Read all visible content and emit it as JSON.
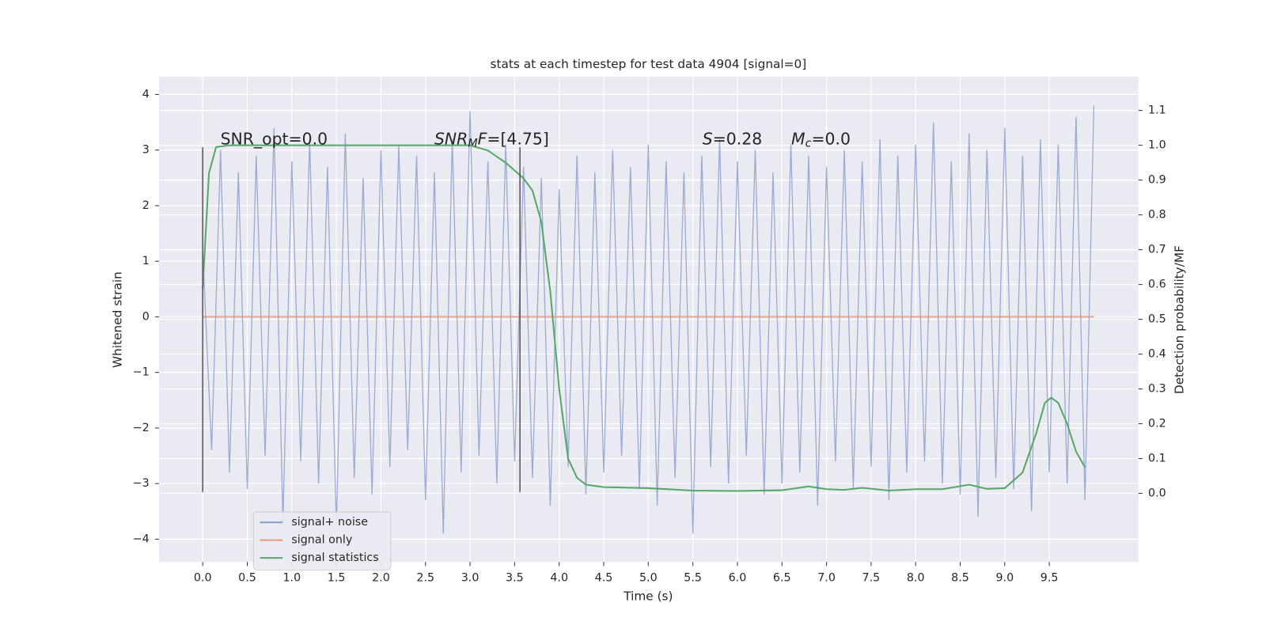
{
  "chart_data": {
    "type": "line",
    "title": "stats at each timestep for test data 4904 [signal=0]",
    "xlabel": "Time (s)",
    "ylabel": "Whitened strain",
    "y2label": "Detection probability/MF",
    "grid": true,
    "legend": "lower left",
    "xlim": [
      -0.49,
      10.5
    ],
    "ylim": [
      -4.41,
      4.32
    ],
    "y2lim": [
      -0.197,
      1.197
    ],
    "xticks": [
      {
        "value": 0,
        "label": "0.0"
      },
      {
        "value": 0.5,
        "label": "0.5"
      },
      {
        "value": 1,
        "label": "1.0"
      },
      {
        "value": 1.5,
        "label": "1.5"
      },
      {
        "value": 2,
        "label": "2.0"
      },
      {
        "value": 2.5,
        "label": "2.5"
      },
      {
        "value": 3,
        "label": "3.0"
      },
      {
        "value": 3.5,
        "label": "3.5"
      },
      {
        "value": 4,
        "label": "4.0"
      },
      {
        "value": 4.5,
        "label": "4.5"
      },
      {
        "value": 5,
        "label": "5.0"
      },
      {
        "value": 5.5,
        "label": "5.5"
      },
      {
        "value": 6,
        "label": "6.0"
      },
      {
        "value": 6.5,
        "label": "6.5"
      },
      {
        "value": 7,
        "label": "7.0"
      },
      {
        "value": 7.5,
        "label": "7.5"
      },
      {
        "value": 8,
        "label": "8.0"
      },
      {
        "value": 8.5,
        "label": "8.5"
      },
      {
        "value": 9,
        "label": "9.0"
      },
      {
        "value": 9.5,
        "label": "9.5"
      }
    ],
    "yticks": [
      {
        "value": -4,
        "label": "−4"
      },
      {
        "value": -3,
        "label": "−3"
      },
      {
        "value": -2,
        "label": "−2"
      },
      {
        "value": -1,
        "label": "−1"
      },
      0,
      1,
      2,
      3,
      4
    ],
    "y2ticks": [
      {
        "value": 0,
        "label": "0.0"
      },
      {
        "value": 0.1,
        "label": "0.1"
      },
      {
        "value": 0.2,
        "label": "0.2"
      },
      {
        "value": 0.3,
        "label": "0.3"
      },
      {
        "value": 0.4,
        "label": "0.4"
      },
      {
        "value": 0.5,
        "label": "0.5"
      },
      {
        "value": 0.6,
        "label": "0.6"
      },
      {
        "value": 0.7,
        "label": "0.7"
      },
      {
        "value": 0.8,
        "label": "0.8"
      },
      {
        "value": 0.9,
        "label": "0.9"
      },
      {
        "value": 1,
        "label": "1.0"
      },
      {
        "value": 1.1,
        "label": "1.1"
      }
    ],
    "series": [
      {
        "name": "signal+ noise",
        "color": "#8da0cb",
        "x": [
          0,
          0.1,
          0.2,
          0.3,
          0.4,
          0.5,
          0.6,
          0.7,
          0.8,
          0.9,
          1,
          1.1,
          1.2,
          1.3,
          1.4,
          1.5,
          1.6,
          1.7,
          1.8,
          1.9,
          2,
          2.1,
          2.2,
          2.3,
          2.4,
          2.5,
          2.6,
          2.7,
          2.8,
          2.9,
          3,
          3.1,
          3.2,
          3.3,
          3.4,
          3.5,
          3.6,
          3.7,
          3.8,
          3.9,
          4,
          4.1,
          4.2,
          4.3,
          4.4,
          4.5,
          4.6,
          4.7,
          4.8,
          4.9,
          5,
          5.1,
          5.2,
          5.3,
          5.4,
          5.5,
          5.6,
          5.7,
          5.8,
          5.9,
          6,
          6.1,
          6.2,
          6.3,
          6.4,
          6.5,
          6.6,
          6.7,
          6.8,
          6.9,
          7,
          7.1,
          7.2,
          7.3,
          7.4,
          7.5,
          7.6,
          7.7,
          7.8,
          7.9,
          8,
          8.1,
          8.2,
          8.3,
          8.4,
          8.5,
          8.6,
          8.7,
          8.8,
          8.9,
          9,
          9.1,
          9.2,
          9.3,
          9.4,
          9.5,
          9.6,
          9.7,
          9.8,
          9.9,
          10
        ],
        "values": [
          1.2,
          -2.4,
          3.0,
          -2.8,
          2.6,
          -3.1,
          2.9,
          -2.5,
          3.4,
          -3.7,
          2.8,
          -2.6,
          3.2,
          -3.0,
          2.7,
          -3.8,
          3.3,
          -2.9,
          2.5,
          -3.2,
          3.0,
          -2.7,
          3.1,
          -2.4,
          2.9,
          -3.3,
          2.6,
          -3.9,
          3.2,
          -2.8,
          3.7,
          -2.5,
          2.8,
          -3.0,
          3.1,
          -2.6,
          2.7,
          -2.9,
          2.5,
          -3.4,
          2.3,
          -2.7,
          2.9,
          -3.2,
          2.6,
          -2.8,
          3.0,
          -2.5,
          2.7,
          -3.1,
          3.1,
          -3.4,
          2.8,
          -2.9,
          2.6,
          -3.9,
          2.9,
          -2.7,
          3.2,
          -3.0,
          2.8,
          -2.5,
          3.0,
          -3.2,
          2.6,
          -3.0,
          3.1,
          -2.8,
          2.9,
          -3.4,
          2.7,
          -2.6,
          3.0,
          -3.1,
          2.8,
          -2.7,
          3.2,
          -3.3,
          2.9,
          -2.8,
          3.1,
          -2.6,
          3.5,
          -3.0,
          2.8,
          -3.2,
          3.3,
          -3.6,
          3.0,
          -2.9,
          3.4,
          -3.1,
          2.9,
          -3.5,
          3.2,
          -2.8,
          3.1,
          -3.0,
          3.6,
          -3.3,
          3.8
        ]
      },
      {
        "name": "signal only",
        "color": "#e9967a",
        "x": [
          0,
          10
        ],
        "values": [
          0,
          0
        ]
      },
      {
        "name": "signal statistics",
        "color": "#55a868",
        "axis": "y2",
        "x": [
          0,
          0.07,
          0.15,
          0.3,
          1,
          2,
          3,
          3.2,
          3.4,
          3.6,
          3.7,
          3.8,
          3.9,
          4,
          4.1,
          4.2,
          4.3,
          4.5,
          5,
          5.5,
          6,
          6.5,
          6.8,
          7,
          7.2,
          7.4,
          7.7,
          8,
          8.3,
          8.6,
          8.8,
          9,
          9.2,
          9.35,
          9.45,
          9.52,
          9.6,
          9.7,
          9.8,
          9.9
        ],
        "values": [
          0.59,
          0.92,
          0.995,
          1,
          1,
          1,
          1,
          0.985,
          0.95,
          0.905,
          0.87,
          0.78,
          0.58,
          0.3,
          0.1,
          0.045,
          0.025,
          0.018,
          0.015,
          0.008,
          0.007,
          0.009,
          0.02,
          0.012,
          0.01,
          0.016,
          0.008,
          0.012,
          0.012,
          0.025,
          0.013,
          0.015,
          0.06,
          0.17,
          0.26,
          0.275,
          0.26,
          0.2,
          0.12,
          0.075
        ]
      }
    ],
    "vlines": [
      {
        "x": 0,
        "ymin": -3.15,
        "ymax": 3.05,
        "color": "#555555"
      },
      {
        "x": 3.56,
        "ymin": -3.15,
        "ymax": 3.05,
        "color": "#555555"
      }
    ],
    "annotations": [
      {
        "parts": [
          {
            "text": "SNR_opt=0.0"
          }
        ]
      },
      {
        "parts": [
          {
            "text": "SNR",
            "italic": true
          },
          {
            "text": "M",
            "italic": true,
            "sub": true
          },
          {
            "text": "F",
            "italic": true
          },
          {
            "text": "=[4.75]"
          }
        ]
      },
      {
        "parts": [
          {
            "text": "S",
            "italic": true
          },
          {
            "text": "=0.28"
          }
        ]
      },
      {
        "parts": [
          {
            "text": "M",
            "italic": true
          },
          {
            "text": "c",
            "italic": true,
            "sub": true
          },
          {
            "text": "=0.0"
          }
        ]
      }
    ]
  }
}
